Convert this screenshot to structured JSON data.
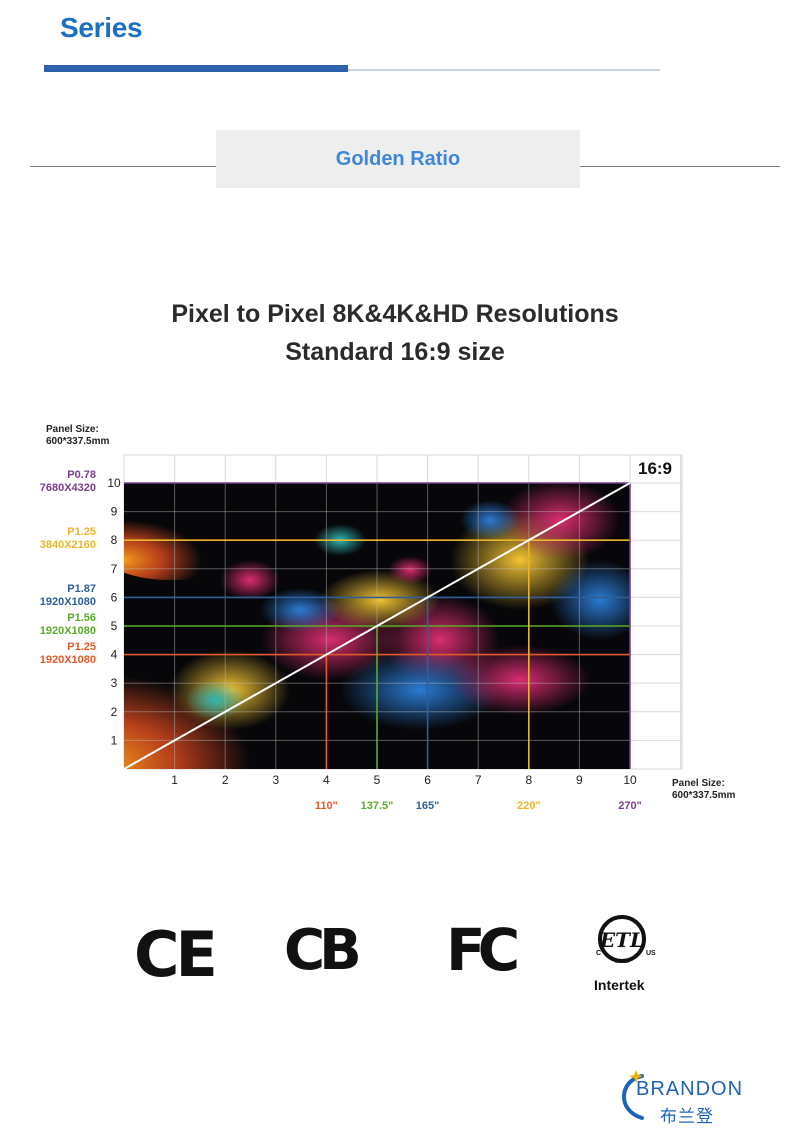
{
  "header": {
    "series": "Series",
    "section_label": "Golden  Ratio"
  },
  "title": {
    "line1": "Pixel to Pixel 8K&4K&HD Resolutions",
    "line2": "Standard 16:9 size"
  },
  "panel_size_top": {
    "line1": "Panel Size:",
    "line2": "600*337.5mm"
  },
  "panel_size_right": {
    "line1": "Panel Size:",
    "line2": "600*337.5mm"
  },
  "colors": {
    "purple": "#7a3f8f",
    "yellow": "#e8b52c",
    "blue": "#2f5f99",
    "green": "#5aab2a",
    "orange": "#e3592a",
    "grid": "#cfcfcf"
  },
  "chart_data": {
    "type": "table",
    "ratio_label": "16:9",
    "x_ticks": [
      "1",
      "2",
      "3",
      "4",
      "5",
      "6",
      "7",
      "8",
      "9",
      "10"
    ],
    "y_ticks": [
      "1",
      "2",
      "3",
      "4",
      "5",
      "6",
      "7",
      "8",
      "9",
      "10"
    ],
    "diagonal": true,
    "grid": true,
    "resolutions": [
      {
        "pitch": "P0.78",
        "resolution": "7680X4320",
        "level": 10,
        "color": "#7a3f8f"
      },
      {
        "pitch": "P1.25",
        "resolution": "3840X2160",
        "level": 8,
        "color": "#e8b52c"
      },
      {
        "pitch": "P1.87",
        "resolution": "1920X1080",
        "level": 6,
        "color": "#2f5f99"
      },
      {
        "pitch": "P1.56",
        "resolution": "1920X1080",
        "level": 5,
        "color": "#5aab2a"
      },
      {
        "pitch": "P1.25",
        "resolution": "1920X1080",
        "level": 4,
        "color": "#e3592a"
      }
    ],
    "diagonals": [
      {
        "size": "110\"",
        "x": 4,
        "color": "#e3592a"
      },
      {
        "size": "137.5\"",
        "x": 5,
        "color": "#5aab2a"
      },
      {
        "size": "165\"",
        "x": 6,
        "color": "#2f5f99"
      },
      {
        "size": "220\"",
        "x": 8,
        "color": "#e8b52c"
      },
      {
        "size": "270\"",
        "x": 10,
        "color": "#7a3f8f"
      }
    ]
  },
  "certifications": [
    "CE",
    "CB",
    "FC",
    "ETL",
    "Intertek"
  ],
  "cert_text": {
    "ce": "CE",
    "cb": "CB",
    "fc": "FC",
    "etl": "ETL",
    "etl_c": "C",
    "etl_us": "US",
    "etl_listed": "LISTED",
    "intertek": "Intertek"
  },
  "brand": {
    "name": "BRANDON",
    "chinese": "布兰登"
  }
}
